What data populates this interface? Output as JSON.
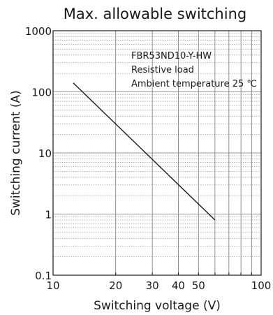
{
  "chart_data": {
    "type": "line",
    "title": "Max. allowable switching",
    "xlabel": "Switching voltage (V)",
    "ylabel": "Switching current (A)",
    "x_scale": "log",
    "y_scale": "log",
    "xlim": [
      10,
      100
    ],
    "ylim": [
      0.1,
      1000
    ],
    "x_ticks": [
      10,
      20,
      30,
      40,
      50,
      100
    ],
    "x_tick_labels": [
      "10",
      "20",
      "30",
      "40",
      "50",
      "100"
    ],
    "y_ticks": [
      0.1,
      1,
      10,
      100,
      1000
    ],
    "y_tick_labels": [
      "0.1",
      "1",
      "10",
      "100",
      "1000"
    ],
    "grid": true,
    "annotations": [
      "FBR53ND10-Y-HW",
      "Resistive load",
      "Ambient temperature 25 ℃"
    ],
    "series": [
      {
        "x": [
          12.5,
          60
        ],
        "y": [
          140,
          0.8
        ]
      }
    ],
    "line_color": "#1a1a1a"
  }
}
